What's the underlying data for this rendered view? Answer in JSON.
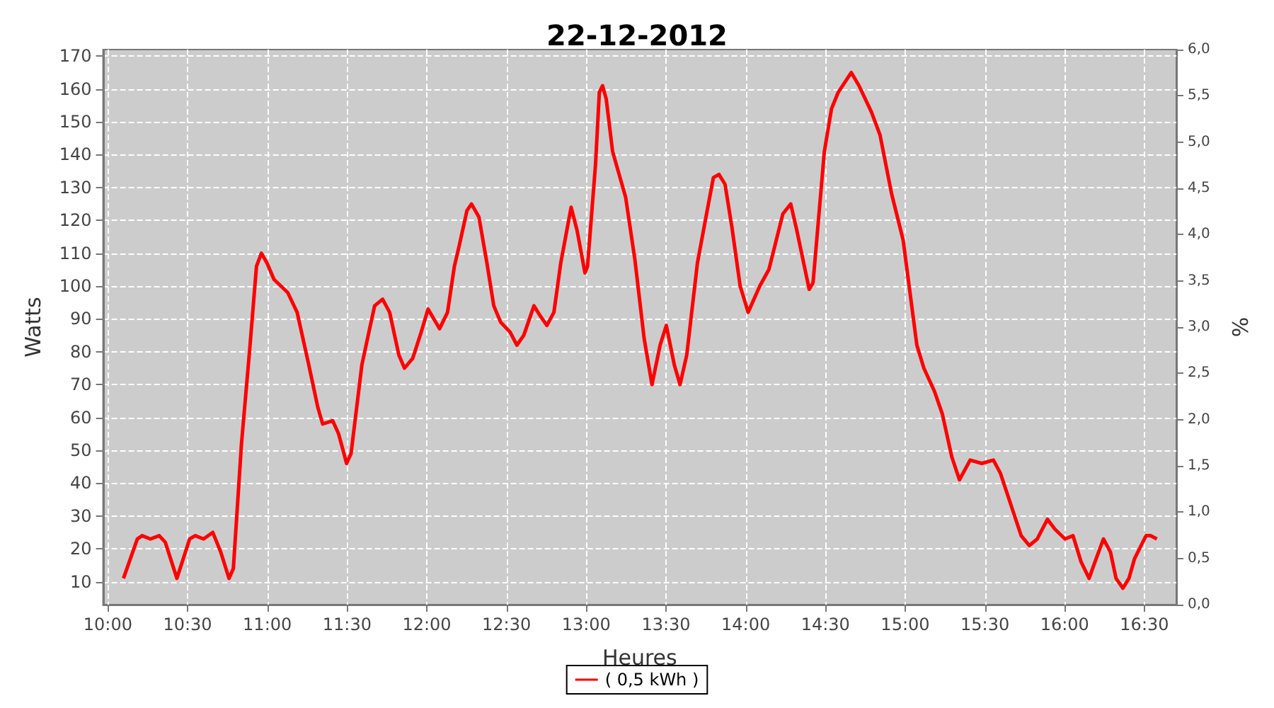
{
  "chart_data": {
    "type": "line",
    "title": "22-12-2012",
    "xlabel": "Heures",
    "ylabel": "Watts",
    "y2label": "%",
    "xlim": [
      9.97,
      16.7
    ],
    "xticks": [
      {
        "value": 10,
        "label": "10:00"
      },
      {
        "value": 10.5,
        "label": "10:30"
      },
      {
        "value": 11,
        "label": "11:00"
      },
      {
        "value": 11.5,
        "label": "11:30"
      },
      {
        "value": 12,
        "label": "12:00"
      },
      {
        "value": 12.5,
        "label": "12:30"
      },
      {
        "value": 13,
        "label": "13:00"
      },
      {
        "value": 13.5,
        "label": "13:30"
      },
      {
        "value": 14,
        "label": "14:00"
      },
      {
        "value": 14.5,
        "label": "14:30"
      },
      {
        "value": 15,
        "label": "15:00"
      },
      {
        "value": 15.5,
        "label": "15:30"
      },
      {
        "value": 16,
        "label": "16:00"
      },
      {
        "value": 16.5,
        "label": "16:30"
      }
    ],
    "ylim": [
      3,
      172
    ],
    "yticks": [
      10,
      20,
      30,
      40,
      50,
      60,
      70,
      80,
      90,
      100,
      110,
      120,
      130,
      140,
      150,
      160,
      170
    ],
    "y2lim": [
      0,
      6
    ],
    "y2ticks": [
      {
        "value": 0,
        "label": "0,0"
      },
      {
        "value": 0.5,
        "label": "0,5"
      },
      {
        "value": 1,
        "label": "1,0"
      },
      {
        "value": 1.5,
        "label": "1,5"
      },
      {
        "value": 2,
        "label": "2,0"
      },
      {
        "value": 2.5,
        "label": "2,5"
      },
      {
        "value": 3,
        "label": "3,0"
      },
      {
        "value": 3.5,
        "label": "3,5"
      },
      {
        "value": 4,
        "label": "4,0"
      },
      {
        "value": 4.5,
        "label": "4,5"
      },
      {
        "value": 5,
        "label": "5,0"
      },
      {
        "value": 5.5,
        "label": "5,5"
      },
      {
        "value": 6,
        "label": "6,0"
      }
    ],
    "grid": true,
    "legend": "bottom",
    "series": [
      {
        "name": "( 0,5 kWh )",
        "color": "#ff0000",
        "x": [
          10.098,
          10.185,
          10.215,
          10.267,
          10.322,
          10.36,
          10.433,
          10.513,
          10.548,
          10.6,
          10.658,
          10.708,
          10.76,
          10.787,
          10.838,
          10.89,
          10.932,
          10.963,
          10.998,
          11.042,
          11.128,
          11.187,
          11.26,
          11.317,
          11.347,
          11.41,
          11.447,
          11.497,
          11.525,
          11.593,
          11.637,
          11.673,
          11.723,
          11.767,
          11.825,
          11.86,
          11.912,
          11.965,
          12.008,
          12.08,
          12.13,
          12.173,
          12.202,
          12.252,
          12.28,
          12.327,
          12.377,
          12.42,
          12.463,
          12.522,
          12.565,
          12.608,
          12.672,
          12.71,
          12.753,
          12.797,
          12.84,
          12.905,
          12.942,
          12.992,
          13.008,
          13.058,
          13.082,
          13.102,
          13.125,
          13.165,
          13.247,
          13.305,
          13.363,
          13.412,
          13.463,
          13.502,
          13.552,
          13.588,
          13.63,
          13.697,
          13.762,
          13.797,
          13.832,
          13.87,
          13.913,
          13.965,
          14.015,
          14.088,
          14.145,
          14.233,
          14.282,
          14.32,
          14.398,
          14.422,
          14.493,
          14.538,
          14.58,
          14.662,
          14.71,
          14.788,
          14.842,
          14.915,
          14.987,
          15.073,
          15.117,
          15.183,
          15.233,
          15.292,
          15.34,
          15.407,
          15.48,
          15.553,
          15.597,
          15.727,
          15.778,
          15.828,
          15.892,
          15.938,
          16.002,
          16.052,
          16.103,
          16.153,
          16.19,
          16.243,
          16.287,
          16.322,
          16.365,
          16.403,
          16.438,
          16.51,
          16.538,
          16.578
        ],
        "values": [
          11,
          23,
          24,
          23,
          24,
          22,
          11,
          23,
          24,
          23,
          25,
          19,
          11,
          14,
          52,
          81,
          106,
          110,
          107,
          102,
          98,
          92,
          76,
          63,
          58,
          59,
          55,
          46,
          49,
          76,
          86,
          94,
          96,
          92,
          79,
          75,
          78,
          86,
          93,
          87,
          92,
          106,
          112,
          123,
          125,
          121,
          107,
          94,
          89,
          86,
          82,
          85,
          94,
          91,
          88,
          92,
          107,
          124,
          117,
          104,
          106,
          137,
          159,
          161,
          157,
          141,
          127,
          108,
          84,
          70,
          82,
          88,
          76,
          70,
          79,
          107,
          124,
          133,
          134,
          131,
          118,
          100,
          92,
          100,
          105,
          122,
          125,
          117,
          99,
          101,
          141,
          154,
          159,
          165,
          161,
          153,
          146,
          128,
          114,
          82,
          75,
          68,
          61,
          48,
          41,
          47,
          46,
          47,
          43,
          24,
          21,
          23,
          29,
          26,
          23,
          24,
          16,
          11,
          16,
          23,
          19,
          11,
          8,
          11,
          17,
          24,
          24,
          23
        ]
      }
    ]
  }
}
